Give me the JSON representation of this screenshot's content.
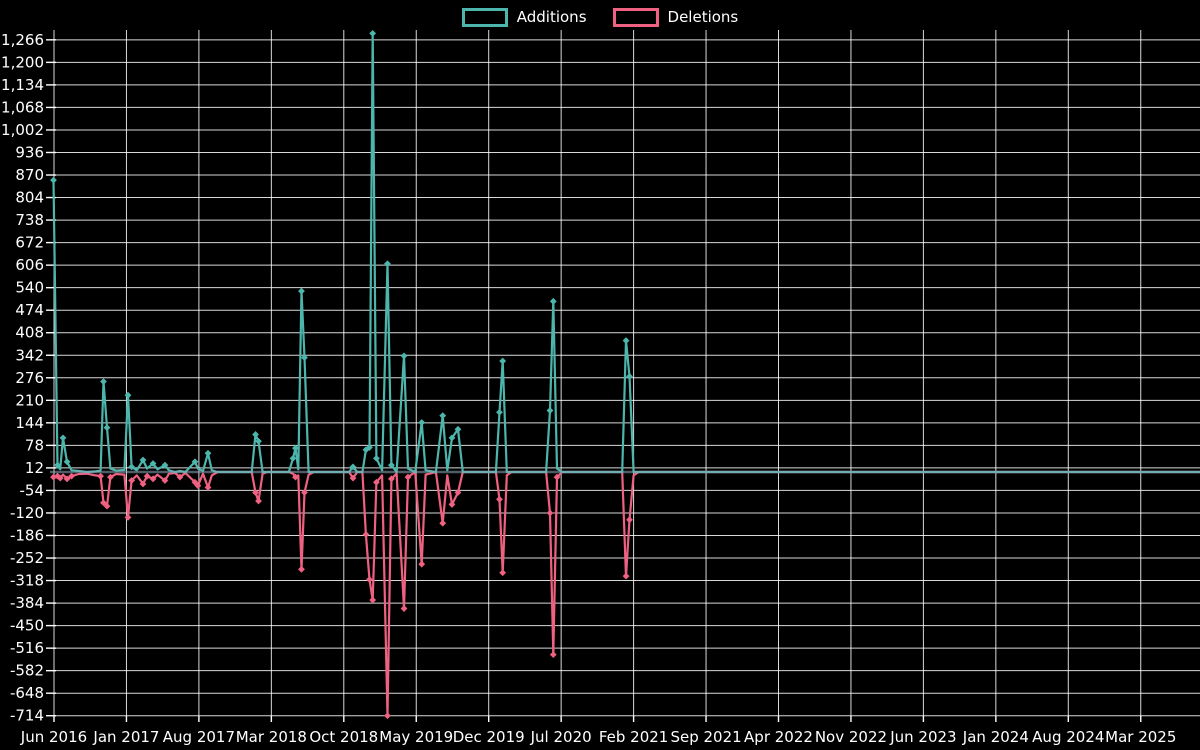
{
  "legend": {
    "items": [
      {
        "label": "Additions",
        "color": "#4db6ac"
      },
      {
        "label": "Deletions",
        "color": "#ef6181"
      }
    ]
  },
  "chart_data": {
    "type": "line",
    "title": "",
    "background_color": "#000000",
    "grid_color": "#ffffff",
    "text_color": "#ffffff",
    "zero_line_color": "#8fa8b8",
    "marker_shape": "diamond",
    "x_axis": {
      "tick_labels": [
        "Jun 2016",
        "Jan 2017",
        "Aug 2017",
        "Mar 2018",
        "Oct 2018",
        "May 2019",
        "Dec 2019",
        "Jul 2020",
        "Feb 2021",
        "Sep 2021",
        "Apr 2022",
        "Nov 2022",
        "Jun 2023",
        "Jan 2024",
        "Aug 2024",
        "Mar 2025"
      ],
      "tick_interval_months": 7
    },
    "y_axis": {
      "min": -714,
      "max": 1266,
      "step": 66,
      "tick_labels": [
        "1,266",
        "1,200",
        "1,134",
        "1,068",
        "1,002",
        "936",
        "870",
        "804",
        "738",
        "672",
        "606",
        "540",
        "474",
        "408",
        "342",
        "276",
        "210",
        "144",
        "78",
        "12",
        "-54",
        "-120",
        "-186",
        "-252",
        "-318",
        "-384",
        "-450",
        "-516",
        "-582",
        "-648",
        "-714"
      ]
    },
    "series": [
      {
        "name": "Additions",
        "color": "#4db6ac",
        "field": "additions"
      },
      {
        "name": "Deletions",
        "color": "#ef6181",
        "field": "deletions"
      }
    ],
    "points_note": "m = months after Jun 2016 (weekly data approximated; values estimated from gridlines)",
    "points": [
      {
        "m": -0.05,
        "additions": 855,
        "deletions": -15
      },
      {
        "m": 0.34,
        "additions": 20,
        "deletions": -12
      },
      {
        "m": 0.6,
        "additions": 8,
        "deletions": -18
      },
      {
        "m": 0.87,
        "additions": 100,
        "deletions": -8
      },
      {
        "m": 1.26,
        "additions": 30,
        "deletions": -20
      },
      {
        "m": 1.7,
        "additions": 5,
        "deletions": -12
      },
      {
        "m": 2.4,
        "additions": 3,
        "deletions": -6
      },
      {
        "m": 3.2,
        "additions": 0,
        "deletions": -5
      },
      {
        "m": 4.0,
        "additions": 2,
        "deletions": -10
      },
      {
        "m": 4.5,
        "additions": 4,
        "deletions": -12
      },
      {
        "m": 4.78,
        "additions": 265,
        "deletions": -90
      },
      {
        "m": 5.12,
        "additions": 130,
        "deletions": -100
      },
      {
        "m": 5.45,
        "additions": 10,
        "deletions": -15
      },
      {
        "m": 6.0,
        "additions": 4,
        "deletions": -6
      },
      {
        "m": 6.8,
        "additions": 6,
        "deletions": -8
      },
      {
        "m": 7.15,
        "additions": 225,
        "deletions": -133
      },
      {
        "m": 7.5,
        "additions": 15,
        "deletions": -25
      },
      {
        "m": 8.0,
        "additions": 5,
        "deletions": -10
      },
      {
        "m": 8.6,
        "additions": 35,
        "deletions": -35
      },
      {
        "m": 9.0,
        "additions": 10,
        "deletions": -12
      },
      {
        "m": 9.57,
        "additions": 25,
        "deletions": -20
      },
      {
        "m": 10.0,
        "additions": 8,
        "deletions": -8
      },
      {
        "m": 10.72,
        "additions": 20,
        "deletions": -25
      },
      {
        "m": 11.1,
        "additions": 5,
        "deletions": -5
      },
      {
        "m": 11.7,
        "additions": 0,
        "deletions": -3
      },
      {
        "m": 12.17,
        "additions": 3,
        "deletions": -15
      },
      {
        "m": 12.7,
        "additions": 0,
        "deletions": -3
      },
      {
        "m": 13.62,
        "additions": 30,
        "deletions": -30
      },
      {
        "m": 13.9,
        "additions": 10,
        "deletions": -40
      },
      {
        "m": 14.4,
        "additions": 3,
        "deletions": -5
      },
      {
        "m": 14.88,
        "additions": 55,
        "deletions": -45
      },
      {
        "m": 15.25,
        "additions": 5,
        "deletions": -10
      },
      {
        "m": 15.8,
        "additions": 0,
        "deletions": 0
      },
      {
        "m": 19.1,
        "additions": 0,
        "deletions": 0
      },
      {
        "m": 19.47,
        "additions": 110,
        "deletions": -60
      },
      {
        "m": 19.76,
        "additions": 90,
        "deletions": -85
      },
      {
        "m": 20.15,
        "additions": 0,
        "deletions": -5
      },
      {
        "m": 20.6,
        "additions": 0,
        "deletions": 0
      },
      {
        "m": 22.7,
        "additions": 0,
        "deletions": 0
      },
      {
        "m": 23.09,
        "additions": 40,
        "deletions": -5
      },
      {
        "m": 23.33,
        "additions": 70,
        "deletions": -15
      },
      {
        "m": 23.6,
        "additions": 8,
        "deletions": -10
      },
      {
        "m": 23.91,
        "additions": 530,
        "deletions": -285
      },
      {
        "m": 24.2,
        "additions": 335,
        "deletions": -60
      },
      {
        "m": 24.6,
        "additions": 0,
        "deletions": -8
      },
      {
        "m": 25.1,
        "additions": 0,
        "deletions": 0
      },
      {
        "m": 28.5,
        "additions": 0,
        "deletions": 0
      },
      {
        "m": 28.89,
        "additions": 15,
        "deletions": -18
      },
      {
        "m": 29.3,
        "additions": 0,
        "deletions": 0
      },
      {
        "m": 29.8,
        "additions": 0,
        "deletions": 0
      },
      {
        "m": 30.14,
        "additions": 65,
        "deletions": -183
      },
      {
        "m": 30.48,
        "additions": 72,
        "deletions": -315
      },
      {
        "m": 30.79,
        "additions": 1285,
        "deletions": -375
      },
      {
        "m": 31.15,
        "additions": 40,
        "deletions": -30
      },
      {
        "m": 31.7,
        "additions": 5,
        "deletions": -10
      },
      {
        "m": 32.22,
        "additions": 610,
        "deletions": -714
      },
      {
        "m": 32.6,
        "additions": 20,
        "deletions": -20
      },
      {
        "m": 33.1,
        "additions": 0,
        "deletions": -5
      },
      {
        "m": 33.82,
        "additions": 340,
        "deletions": -400
      },
      {
        "m": 34.2,
        "additions": 10,
        "deletions": -15
      },
      {
        "m": 34.9,
        "additions": 0,
        "deletions": 0
      },
      {
        "m": 35.53,
        "additions": 145,
        "deletions": -270
      },
      {
        "m": 35.9,
        "additions": 5,
        "deletions": -8
      },
      {
        "m": 36.9,
        "additions": 0,
        "deletions": 0
      },
      {
        "m": 37.56,
        "additions": 165,
        "deletions": -150
      },
      {
        "m": 38.0,
        "additions": 5,
        "deletions": -10
      },
      {
        "m": 38.45,
        "additions": 100,
        "deletions": -95
      },
      {
        "m": 39.03,
        "additions": 125,
        "deletions": -60
      },
      {
        "m": 39.5,
        "additions": 0,
        "deletions": 0
      },
      {
        "m": 42.7,
        "additions": 0,
        "deletions": 0
      },
      {
        "m": 43.04,
        "additions": 175,
        "deletions": -80
      },
      {
        "m": 43.35,
        "additions": 325,
        "deletions": -295
      },
      {
        "m": 43.75,
        "additions": 0,
        "deletions": -10
      },
      {
        "m": 44.2,
        "additions": 0,
        "deletions": 0
      },
      {
        "m": 47.55,
        "additions": 0,
        "deletions": 0
      },
      {
        "m": 47.92,
        "additions": 180,
        "deletions": -120
      },
      {
        "m": 48.24,
        "additions": 500,
        "deletions": -535
      },
      {
        "m": 48.6,
        "additions": 10,
        "deletions": -15
      },
      {
        "m": 49.1,
        "additions": 0,
        "deletions": 0
      },
      {
        "m": 54.9,
        "additions": 0,
        "deletions": 0
      },
      {
        "m": 55.27,
        "additions": 385,
        "deletions": -305
      },
      {
        "m": 55.6,
        "additions": 280,
        "deletions": -140
      },
      {
        "m": 56.0,
        "additions": 0,
        "deletions": -10
      },
      {
        "m": 56.5,
        "additions": 0,
        "deletions": 0
      },
      {
        "m": 110.7,
        "additions": 0,
        "deletions": 0
      }
    ]
  }
}
